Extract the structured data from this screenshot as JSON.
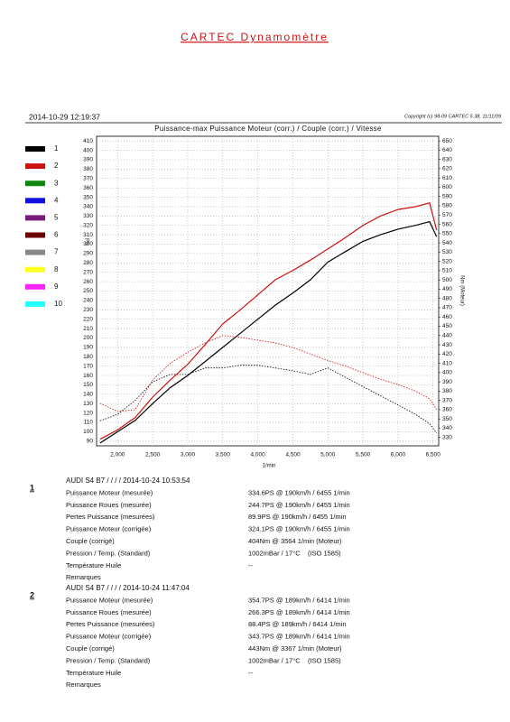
{
  "header": {
    "title": "CARTEC Dynamomètre",
    "date": "2014-10-29 12:19:37",
    "copyright": "Copyright (c) 98-09 CARTEC 5.38, 11/11/09"
  },
  "chart_data": {
    "type": "line",
    "title": "Puissance-max Puissance Moteur (corr.) / Couple (corr.) / Vitesse",
    "x_label": "1/min",
    "y_label": "PS",
    "y2_label": "Nm (Moteur)",
    "x": [
      1750,
      2000,
      2250,
      2500,
      2750,
      3000,
      3250,
      3500,
      3750,
      4000,
      4250,
      4500,
      4750,
      5000,
      5250,
      5500,
      5750,
      6000,
      6250,
      6450,
      6550
    ],
    "series": [
      {
        "name": "1",
        "color": "#000000",
        "values": [
          88,
          100,
          112,
          130,
          147,
          160,
          175,
          190,
          205,
          220,
          235,
          248,
          262,
          281,
          292,
          303,
          310,
          316,
          320,
          324,
          308
        ],
        "torque_values": [
          348,
          355,
          370,
          390,
          398,
          398,
          405,
          405,
          408,
          408,
          405,
          402,
          398,
          405,
          395,
          385,
          375,
          365,
          355,
          345,
          335
        ]
      },
      {
        "name": "2",
        "color": "#cc1111",
        "values": [
          92,
          102,
          115,
          137,
          155,
          172,
          193,
          215,
          230,
          246,
          262,
          272,
          283,
          295,
          307,
          320,
          330,
          337,
          340,
          344,
          315
        ],
        "torque_values": [
          367,
          358,
          360,
          392,
          410,
          422,
          432,
          440,
          438,
          435,
          432,
          427,
          420,
          413,
          407,
          400,
          393,
          387,
          380,
          372,
          360
        ]
      },
      {
        "name": "3",
        "color": "#118811"
      },
      {
        "name": "4",
        "color": "#1111dd"
      },
      {
        "name": "5",
        "color": "#7a1a7a"
      },
      {
        "name": "6",
        "color": "#6b0000"
      },
      {
        "name": "7",
        "color": "#888888"
      },
      {
        "name": "8",
        "color": "#ffff22"
      },
      {
        "name": "9",
        "color": "#ff22ff"
      },
      {
        "name": "10",
        "color": "#22ffff"
      }
    ],
    "xlim": [
      1700,
      6580
    ],
    "xticks": [
      {
        "value": 2000,
        "label": "2,000"
      },
      {
        "value": 2500,
        "label": "2,500"
      },
      {
        "value": 3000,
        "label": "3,000"
      },
      {
        "value": 3500,
        "label": "3,500"
      },
      {
        "value": 4000,
        "label": "4,000"
      },
      {
        "value": 4500,
        "label": "4,500"
      },
      {
        "value": 5000,
        "label": "5,000"
      },
      {
        "value": 5500,
        "label": "5,500"
      },
      {
        "value": 6000,
        "label": "6,000"
      },
      {
        "value": 6500,
        "label": "6,500"
      }
    ],
    "ylim": [
      85,
      415
    ],
    "yticks": [
      90,
      100,
      110,
      120,
      130,
      140,
      150,
      160,
      170,
      180,
      190,
      200,
      210,
      220,
      230,
      240,
      250,
      260,
      270,
      280,
      290,
      300,
      310,
      320,
      330,
      340,
      350,
      360,
      370,
      380,
      390,
      400,
      410
    ],
    "y2lim": [
      321,
      655
    ],
    "y2ticks": [
      330,
      340,
      350,
      360,
      370,
      380,
      390,
      400,
      410,
      420,
      430,
      440,
      450,
      460,
      470,
      480,
      490,
      500,
      510,
      520,
      530,
      540,
      550,
      560,
      570,
      580,
      590,
      600,
      610,
      620,
      630,
      640,
      650
    ],
    "grid": true
  },
  "runs": [
    {
      "number": "1",
      "header": "AUDI S4 B7  /  /  /  / 2014-10-24 10:53:54",
      "rows": [
        {
          "label": "Puissance Moteur (mesurée)",
          "value": "334.6PS @ 190km/h / 6455 1/min"
        },
        {
          "label": "Puissance Roues (mesurée)",
          "value": "244.7PS @ 190km/h / 6455 1/min"
        },
        {
          "label": "Pertes Puissance (mesurées)",
          "value": "89.9PS @ 190km/h / 6455 1/min"
        },
        {
          "label": "Puissance Moteur (corrigée)",
          "value": "324.1PS @ 190km/h / 6455 1/min"
        },
        {
          "label": "Couple (corrigé)",
          "value": "404Nm @ 3564 1/min (Moteur)"
        },
        {
          "label": "Pression / Temp. (Standard)",
          "value": "1002mBar / 17°C    (ISO 1585)"
        },
        {
          "label": "Température Huile",
          "value": "--"
        }
      ],
      "remarks": "Remarques"
    },
    {
      "number": "2",
      "header": "AUDI S4 B7  /  /  /  / 2014-10-24 11:47:04",
      "rows": [
        {
          "label": "Puissance Moteur (mesurée)",
          "value": "354.7PS @ 189km/h / 6414 1/min"
        },
        {
          "label": "Puissance Roues (mesurée)",
          "value": "266.3PS @ 189km/h / 6414 1/min"
        },
        {
          "label": "Pertes Puissance (mesurées)",
          "value": "88.4PS @ 189km/h / 6414 1/min"
        },
        {
          "label": "Puissance Moteur (corrigée)",
          "value": "343.7PS @ 189km/h / 6414 1/min"
        },
        {
          "label": "Couple (corrigé)",
          "value": "443Nm @ 3367 1/min (Moteur)"
        },
        {
          "label": "Pression / Temp. (Standard)",
          "value": "1002mBar / 17°C    (ISO 1585)"
        },
        {
          "label": "Température Huile",
          "value": "--"
        }
      ],
      "remarks": "Remarques"
    }
  ]
}
